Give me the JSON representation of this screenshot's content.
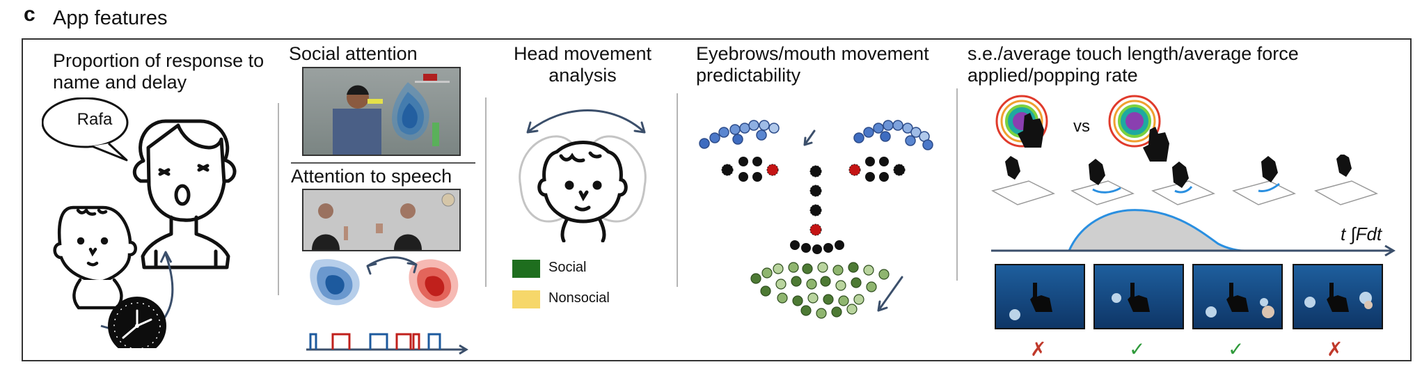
{
  "header": {
    "panel_letter": "c",
    "section_title": "App features"
  },
  "features": {
    "name_response": {
      "title": "Proportion of response to name and delay",
      "speech_bubble": "Rafa"
    },
    "social_attention": {
      "title": "Social attention"
    },
    "attention_to_speech": {
      "title": "Attention to speech"
    },
    "head_movement": {
      "title": "Head movement analysis"
    },
    "face_movement": {
      "title": "Eyebrows/mouth movement predictability"
    },
    "touch_game": {
      "title": "s.e./average touch length/average force applied/popping rate",
      "versus_label": "vs",
      "force_label": "t ∫Fdt"
    }
  },
  "legend": {
    "items": [
      {
        "label": "Social",
        "color": "#1e6e1e"
      },
      {
        "label": "Nonsocial",
        "color": "#f6d76a"
      }
    ]
  },
  "results": {
    "marks": [
      {
        "symbol": "✗",
        "outcome": "incorrect",
        "color": "#c0392b"
      },
      {
        "symbol": "✓",
        "outcome": "correct",
        "color": "#2e9a3a"
      },
      {
        "symbol": "✓",
        "outcome": "correct",
        "color": "#2e9a3a"
      },
      {
        "symbol": "✗",
        "outcome": "incorrect",
        "color": "#c0392b"
      }
    ]
  },
  "colors": {
    "heatmap_blue": "#1d5a9e",
    "heatmap_red": "#c0201c",
    "arrow": "#3b4f6b",
    "force_curve": "#2a8fe0"
  }
}
